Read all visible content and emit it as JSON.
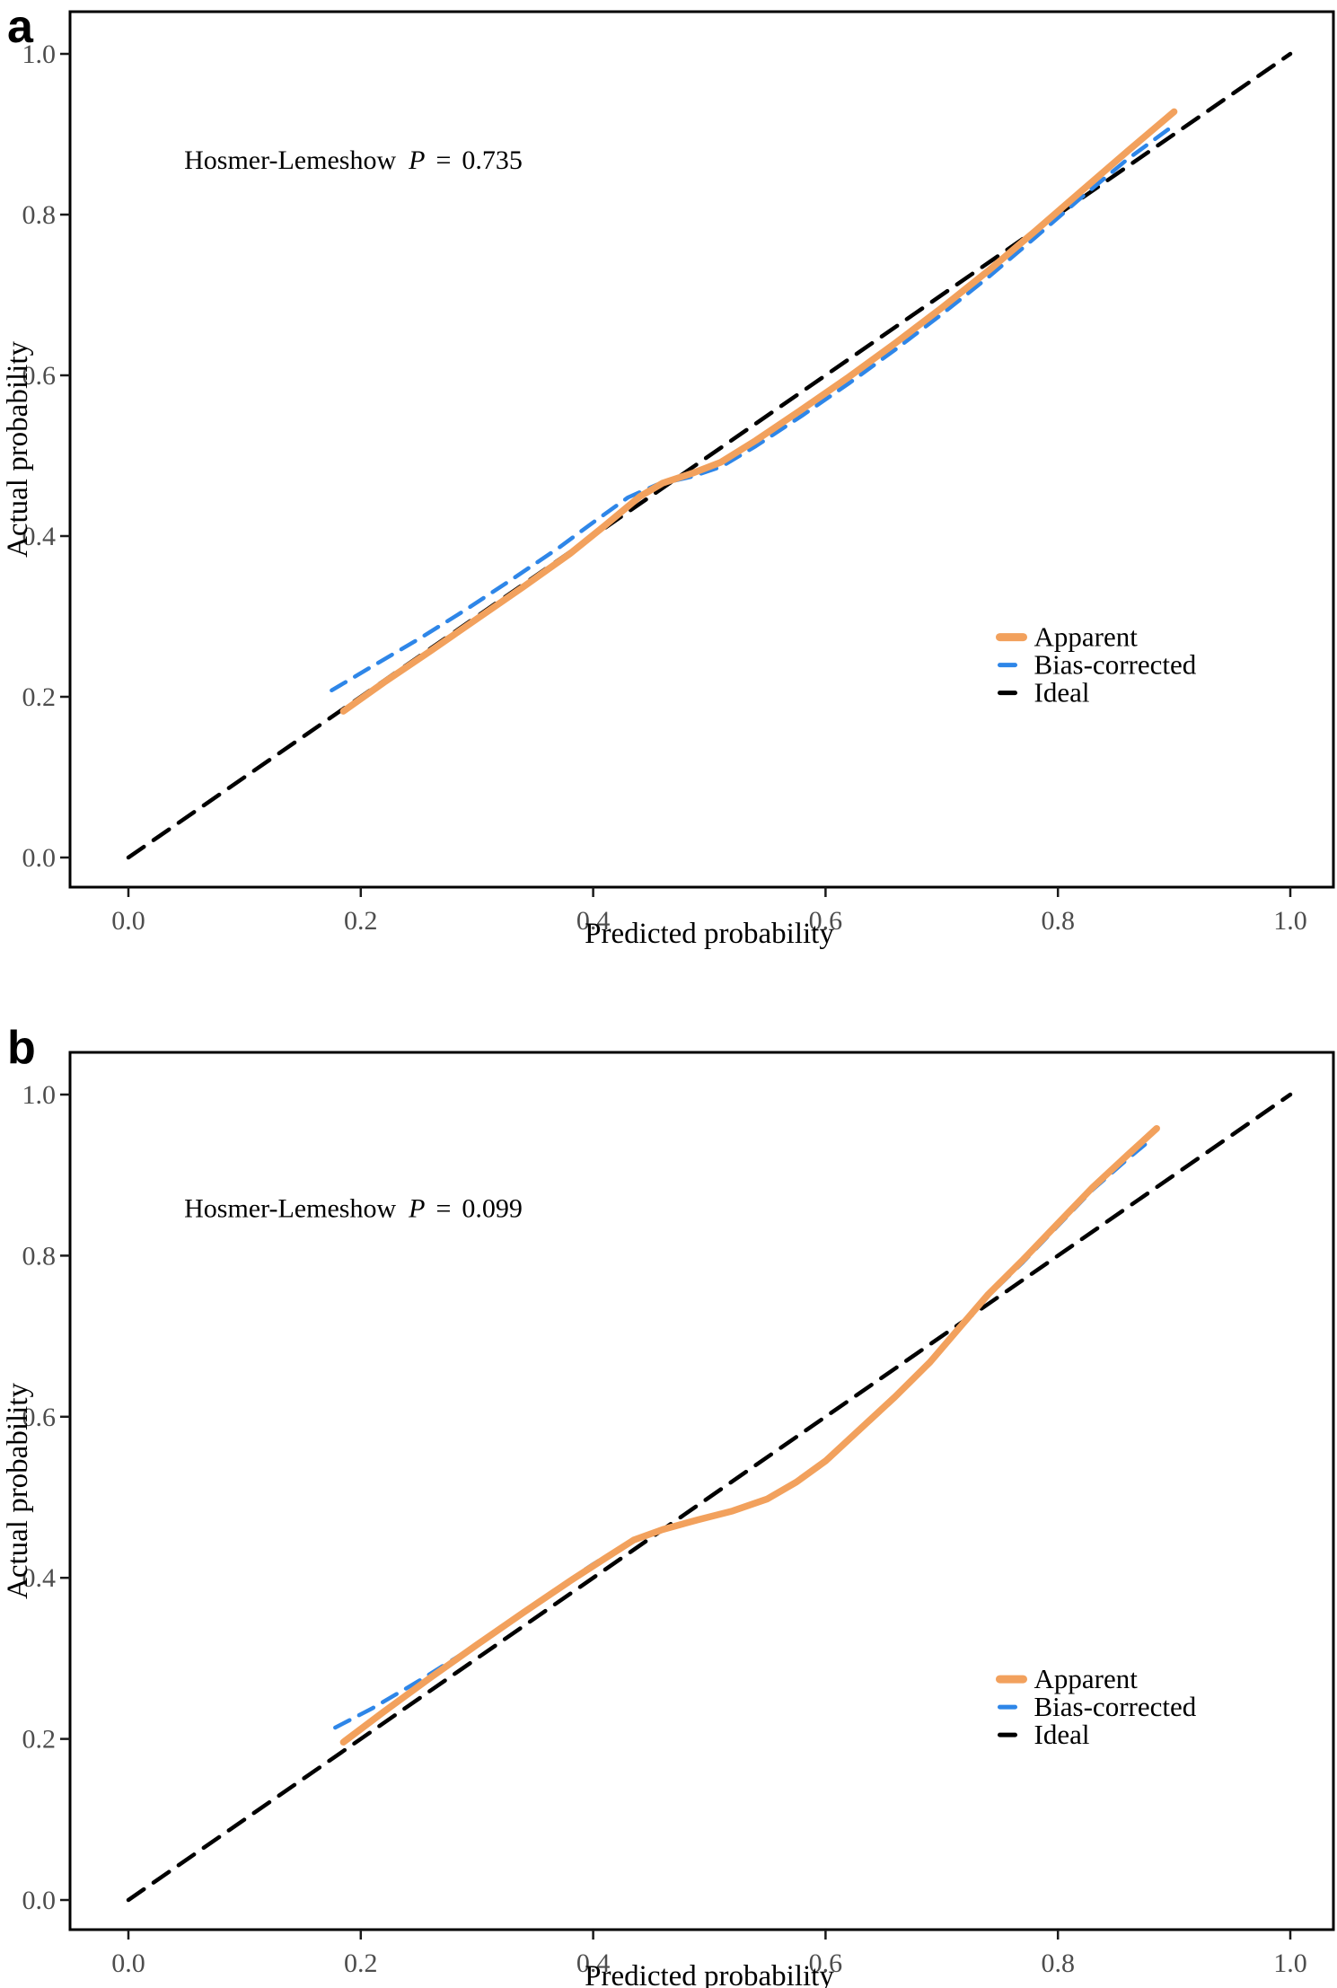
{
  "figure": {
    "background": "#ffffff",
    "panels": [
      {
        "letter": "a"
      },
      {
        "letter": "b"
      }
    ]
  },
  "chart_data": [
    {
      "type": "line",
      "panel": "a",
      "title": "",
      "xlabel": "Predicted probability",
      "ylabel": "Actual probability",
      "xlim": [
        -0.05,
        1.037
      ],
      "ylim": [
        -0.037,
        1.052
      ],
      "grid": false,
      "xtick_values": [
        0.0,
        0.2,
        0.4,
        0.6,
        0.8,
        1.0
      ],
      "ytick_values": [
        0.0,
        0.2,
        0.4,
        0.6,
        0.8,
        1.0
      ],
      "xtick_labels": [
        "0.0",
        "0.2",
        "0.4",
        "0.6",
        "0.8",
        "1.0"
      ],
      "ytick_labels": [
        "0.0",
        "0.2",
        "0.4",
        "0.6",
        "0.8",
        "1.0"
      ],
      "annotation": {
        "text": "Hosmer-Lemeshow",
        "p": "P",
        "eq": "=",
        "value": "0.735",
        "x": 0.048,
        "y": 0.857
      },
      "legend": {
        "position": "bottom-right",
        "x": 0.75,
        "y": 0.263,
        "entries": [
          "Apparent",
          "Bias-corrected",
          "Ideal"
        ]
      },
      "series": [
        {
          "name": "Apparent",
          "color": "#F2A15D",
          "style": "solid",
          "width": 7.5,
          "points": [
            [
              0.185,
              0.182
            ],
            [
              0.22,
              0.218
            ],
            [
              0.26,
              0.257
            ],
            [
              0.3,
              0.297
            ],
            [
              0.34,
              0.337
            ],
            [
              0.38,
              0.378
            ],
            [
              0.41,
              0.413
            ],
            [
              0.44,
              0.449
            ],
            [
              0.46,
              0.466
            ],
            [
              0.485,
              0.478
            ],
            [
              0.51,
              0.492
            ],
            [
              0.54,
              0.519
            ],
            [
              0.58,
              0.558
            ],
            [
              0.62,
              0.598
            ],
            [
              0.66,
              0.64
            ],
            [
              0.7,
              0.684
            ],
            [
              0.74,
              0.73
            ],
            [
              0.78,
              0.779
            ],
            [
              0.82,
              0.829
            ],
            [
              0.86,
              0.879
            ],
            [
              0.9,
              0.928
            ]
          ]
        },
        {
          "name": "Bias-corrected",
          "color": "#2E86E8",
          "style": "dashed",
          "width": 4.5,
          "points": [
            [
              0.175,
              0.208
            ],
            [
              0.21,
              0.238
            ],
            [
              0.25,
              0.272
            ],
            [
              0.29,
              0.308
            ],
            [
              0.33,
              0.346
            ],
            [
              0.37,
              0.385
            ],
            [
              0.4,
              0.417
            ],
            [
              0.43,
              0.448
            ],
            [
              0.455,
              0.464
            ],
            [
              0.485,
              0.474
            ],
            [
              0.51,
              0.486
            ],
            [
              0.54,
              0.512
            ],
            [
              0.58,
              0.55
            ],
            [
              0.62,
              0.59
            ],
            [
              0.66,
              0.632
            ],
            [
              0.7,
              0.676
            ],
            [
              0.74,
              0.722
            ],
            [
              0.78,
              0.771
            ],
            [
              0.82,
              0.821
            ],
            [
              0.86,
              0.869
            ],
            [
              0.895,
              0.906
            ]
          ]
        },
        {
          "name": "Ideal",
          "color": "#000000",
          "style": "dashed",
          "width": 4.5,
          "points": [
            [
              0.0,
              0.0
            ],
            [
              1.0,
              1.0
            ]
          ]
        }
      ]
    },
    {
      "type": "line",
      "panel": "b",
      "title": "",
      "xlabel": "Predicted probability",
      "ylabel": "Actual probability",
      "xlim": [
        -0.05,
        1.037
      ],
      "ylim": [
        -0.037,
        1.052
      ],
      "grid": false,
      "xtick_values": [
        0.0,
        0.2,
        0.4,
        0.6,
        0.8,
        1.0
      ],
      "ytick_values": [
        0.0,
        0.2,
        0.4,
        0.6,
        0.8,
        1.0
      ],
      "xtick_labels": [
        "0.0",
        "0.2",
        "0.4",
        "0.6",
        "0.8",
        "1.0"
      ],
      "ytick_labels": [
        "0.0",
        "0.2",
        "0.4",
        "0.6",
        "0.8",
        "1.0"
      ],
      "annotation": {
        "text": "Hosmer-Lemeshow",
        "p": "P",
        "eq": "=",
        "value": "0.099",
        "x": 0.048,
        "y": 0.848
      },
      "legend": {
        "position": "bottom-right",
        "x": 0.75,
        "y": 0.263,
        "entries": [
          "Apparent",
          "Bias-corrected",
          "Ideal"
        ]
      },
      "series": [
        {
          "name": "Apparent",
          "color": "#F2A15D",
          "style": "solid",
          "width": 7.5,
          "points": [
            [
              0.185,
              0.196
            ],
            [
              0.22,
              0.234
            ],
            [
              0.26,
              0.276
            ],
            [
              0.3,
              0.317
            ],
            [
              0.34,
              0.357
            ],
            [
              0.38,
              0.396
            ],
            [
              0.41,
              0.424
            ],
            [
              0.435,
              0.447
            ],
            [
              0.46,
              0.46
            ],
            [
              0.49,
              0.472
            ],
            [
              0.52,
              0.483
            ],
            [
              0.55,
              0.498
            ],
            [
              0.575,
              0.519
            ],
            [
              0.6,
              0.545
            ],
            [
              0.63,
              0.585
            ],
            [
              0.66,
              0.625
            ],
            [
              0.69,
              0.668
            ],
            [
              0.715,
              0.71
            ],
            [
              0.74,
              0.752
            ],
            [
              0.77,
              0.795
            ],
            [
              0.8,
              0.84
            ],
            [
              0.83,
              0.885
            ],
            [
              0.86,
              0.925
            ],
            [
              0.885,
              0.958
            ]
          ]
        },
        {
          "name": "Bias-corrected",
          "color": "#2E86E8",
          "style": "dashed",
          "width": 4.5,
          "points": [
            [
              0.178,
              0.214
            ],
            [
              0.21,
              0.238
            ],
            [
              0.25,
              0.272
            ],
            [
              0.29,
              0.308
            ],
            [
              0.33,
              0.348
            ],
            [
              0.37,
              0.388
            ],
            [
              0.4,
              0.417
            ],
            [
              0.43,
              0.443
            ],
            [
              0.46,
              0.459
            ],
            [
              0.49,
              0.471
            ],
            [
              0.52,
              0.482
            ],
            [
              0.55,
              0.497
            ],
            [
              0.575,
              0.518
            ],
            [
              0.6,
              0.543
            ],
            [
              0.63,
              0.583
            ],
            [
              0.66,
              0.623
            ],
            [
              0.69,
              0.666
            ],
            [
              0.715,
              0.708
            ],
            [
              0.74,
              0.75
            ],
            [
              0.77,
              0.792
            ],
            [
              0.8,
              0.837
            ],
            [
              0.83,
              0.882
            ],
            [
              0.86,
              0.92
            ],
            [
              0.88,
              0.944
            ]
          ]
        },
        {
          "name": "Ideal",
          "color": "#000000",
          "style": "dashed",
          "width": 4.5,
          "points": [
            [
              0.0,
              0.0
            ],
            [
              1.0,
              1.0
            ]
          ]
        }
      ]
    }
  ]
}
